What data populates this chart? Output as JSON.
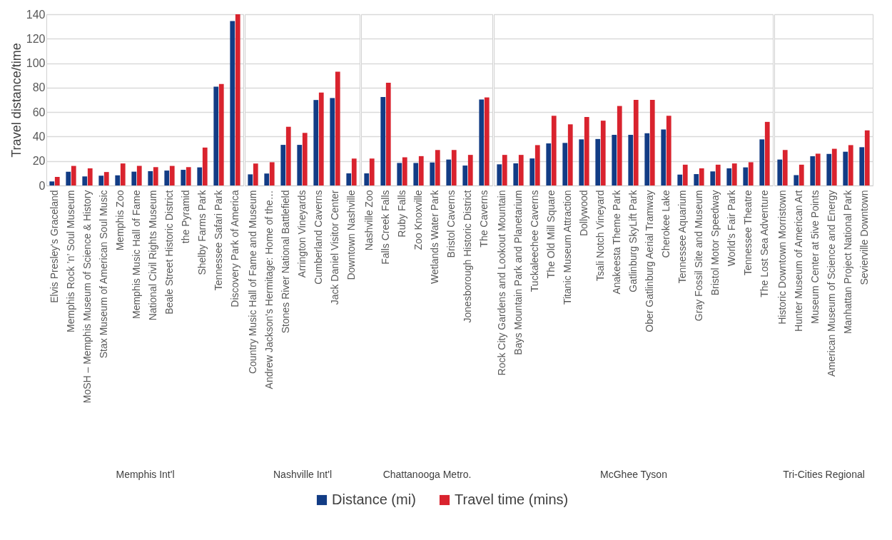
{
  "chart_data": [
    {
      "type": "bar",
      "xlabel": "Memphis Int'l",
      "ylabel": "Travel distance/time",
      "categories": [
        "Elvis Presley's Graceland",
        "Memphis Rock ’n’ Soul Museum",
        "MoSH – Memphis Museum of Science & History",
        "Stax Museum of American Soul Music",
        "Memphis Zoo",
        "Memphis Music Hall of Fame",
        "National Civil Rights Museum",
        "Beale Street Historic District",
        "the Pyramid",
        "Shelby Farms Park",
        "Tennessee Safari Park",
        "Discovery Park of America"
      ],
      "series": [
        {
          "name": "Distance (mi)",
          "color": "#123c85",
          "values": [
            3.3,
            11.3,
            7.4,
            8,
            8.3,
            11.3,
            11.7,
            12.2,
            12.8,
            14.8,
            80.8,
            134.4
          ]
        },
        {
          "name": "Travel time (mins)",
          "color": "#d9232e",
          "values": [
            7,
            16,
            14,
            11,
            18,
            16,
            15,
            16,
            15,
            31,
            83,
            140
          ]
        }
      ],
      "ylim": [
        0,
        140
      ],
      "yticks": [
        0,
        20,
        40,
        60,
        80,
        100,
        120,
        140
      ],
      "grid": "y",
      "legend": "bottom"
    },
    {
      "type": "bar",
      "xlabel": "Nashville Int'l",
      "categories": [
        "Country Music Hall of Fame and Museum",
        "Andrew Jackson's Hermitage: Home of the…",
        "Stones River National Battlefield",
        "Arrington Vineyards",
        "Cumberland Caverns",
        "Jack Daniel Visitor Center",
        "Downtown Nashville"
      ],
      "series": [
        {
          "name": "Distance (mi)",
          "color": "#123c85",
          "values": [
            9.1,
            9.7,
            33.2,
            33.2,
            69.9,
            71.5,
            9.9
          ]
        },
        {
          "name": "Travel time (mins)",
          "color": "#d9232e",
          "values": [
            18,
            19,
            48,
            43,
            76,
            93,
            22
          ]
        }
      ],
      "ylim": [
        0,
        140
      ],
      "yticks": [
        0,
        20,
        40,
        60,
        80,
        100,
        120,
        140
      ],
      "grid": "y",
      "tick_labels": "x"
    },
    {
      "type": "bar",
      "xlabel": "Chattanooga Metro.",
      "categories": [
        "Nashville Zoo",
        "Falls Creek Falls",
        "Ruby Falls",
        "Zoo Knoxville",
        "Wetlands Water Park",
        "Bristol Caverns",
        "Jonesborough Historic District",
        "The Caverns"
      ],
      "series": [
        {
          "name": "Distance (mi)",
          "color": "#123c85",
          "values": [
            9.9,
            72.4,
            18.4,
            18.4,
            18.8,
            21.2,
            16.3,
            70.3
          ]
        },
        {
          "name": "Travel time (mins)",
          "color": "#d9232e",
          "values": [
            22,
            84,
            23,
            24,
            29,
            29,
            25,
            72
          ]
        }
      ],
      "ylim": [
        0,
        140
      ],
      "yticks": [
        0,
        20,
        40,
        60,
        80,
        100,
        120,
        140
      ],
      "grid": "y",
      "tick_labels": "x"
    },
    {
      "type": "bar",
      "xlabel": "McGhee Tyson",
      "categories": [
        "Rock City Gardens and Lookout Mountain",
        "Bays Mountain Park and Planetarium",
        "Tuckaleechee Caverns",
        "The Old Mill Square",
        "Titanic Museum Attraction",
        "Dollywood",
        "Tsali Notch Vineyard",
        "Anakeesta Theme Park",
        "Gatlinburg SkyLift Park",
        "Ober Gatlinburg Aerial Tramway",
        "Cherokee Lake",
        "Tennessee Aquarium",
        "Gray Fossil Site and Museum",
        "Bristol Motor Speedway",
        "World’s Fair Park",
        "Tennessee Theatre",
        "The Lost Sea Adventure"
      ],
      "series": [
        {
          "name": "Distance (mi)",
          "color": "#123c85",
          "values": [
            17.3,
            18.1,
            22.1,
            34.4,
            34.8,
            37.7,
            38,
            41.4,
            41.4,
            42.7,
            45.8,
            8.9,
            9.3,
            11.5,
            14,
            14.8,
            37.7
          ]
        },
        {
          "name": "Travel time (mins)",
          "color": "#d9232e",
          "values": [
            25,
            25,
            33,
            57,
            50,
            56,
            53,
            65,
            70,
            70,
            57,
            17,
            14,
            17,
            18,
            19,
            52
          ]
        }
      ],
      "ylim": [
        0,
        140
      ],
      "yticks": [
        0,
        20,
        40,
        60,
        80,
        100,
        120,
        140
      ],
      "grid": "y",
      "tick_labels": "x"
    },
    {
      "type": "bar",
      "xlabel": "Tri-Cities Regional",
      "categories": [
        "Historic Downtown Morristown",
        "Hunter Museum of American Art",
        "Museum Center at 5ive Points",
        "American Museum of Science and Energy",
        "Manhattan Project National Park",
        "Sevierville Downtown"
      ],
      "series": [
        {
          "name": "Distance (mi)",
          "color": "#123c85",
          "values": [
            21.2,
            8.5,
            23.9,
            25.8,
            27.6,
            31.3
          ]
        },
        {
          "name": "Travel time (mins)",
          "color": "#d9232e",
          "values": [
            29,
            17,
            26,
            30,
            33,
            45
          ]
        }
      ],
      "ylim": [
        0,
        140
      ],
      "yticks": [
        0,
        20,
        40,
        60,
        80,
        100,
        120,
        140
      ],
      "grid": "y",
      "tick_labels": "x"
    }
  ]
}
